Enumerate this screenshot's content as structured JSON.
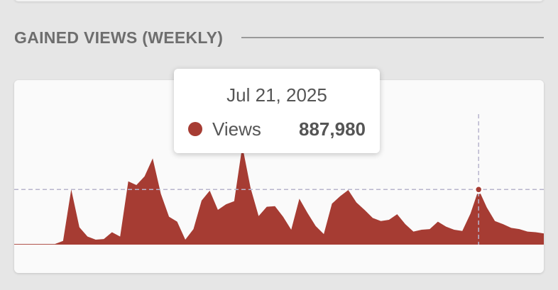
{
  "section": {
    "title": "GAINED VIEWS (WEEKLY)"
  },
  "tooltip": {
    "date": "Jul 21, 2025",
    "series_name": "Views",
    "value": "887,980",
    "color": "#a63c33"
  },
  "colors": {
    "area": "#a63c33",
    "crosshair": "#b8b4cc",
    "background": "#e6e6e6",
    "card": "#fafafa"
  },
  "chart_data": {
    "type": "area",
    "ylim": [
      0,
      1600000
    ],
    "highlight_index": 57,
    "series": [
      {
        "name": "Views",
        "values": [
          10000,
          10000,
          10000,
          10000,
          10000,
          10000,
          60000,
          890000,
          280000,
          130000,
          80000,
          90000,
          200000,
          130000,
          1020000,
          960000,
          1100000,
          1390000,
          820000,
          450000,
          370000,
          80000,
          250000,
          710000,
          870000,
          560000,
          650000,
          700000,
          1590000,
          920000,
          460000,
          610000,
          620000,
          450000,
          240000,
          740000,
          510000,
          300000,
          170000,
          660000,
          780000,
          880000,
          680000,
          560000,
          430000,
          380000,
          400000,
          490000,
          330000,
          210000,
          240000,
          250000,
          370000,
          290000,
          240000,
          220000,
          500000,
          887980,
          600000,
          380000,
          330000,
          270000,
          250000,
          210000,
          200000,
          180000
        ]
      }
    ]
  }
}
